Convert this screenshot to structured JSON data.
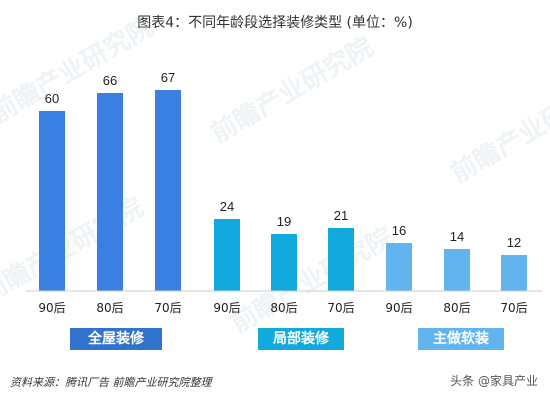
{
  "title": "图表4：不同年龄段选择装修类型 (单位：%)",
  "watermark": "前瞻产业研究院",
  "source": "资料来源：腾讯厂告 前瞻产业研究院整理",
  "credit": "头条 @家具产业",
  "colors": {
    "full": "#3a7fe2",
    "partial": "#12a9dc",
    "basic": "#62b4ee",
    "label_full": "#2f73cd",
    "label_partial": "#12a9dc",
    "label_basic": "#62b4ee"
  },
  "chart_data": {
    "type": "bar",
    "categories": [
      "90后",
      "80后",
      "70后",
      "90后",
      "80后",
      "70后",
      "90后",
      "80后",
      "70后"
    ],
    "groups": [
      {
        "name": "全屋装修",
        "categories": [
          "90后",
          "80后",
          "70后"
        ],
        "values": [
          60,
          66,
          67
        ]
      },
      {
        "name": "局部装修",
        "categories": [
          "90后",
          "80后",
          "70后"
        ],
        "values": [
          24,
          19,
          21
        ]
      },
      {
        "name": "主做软装",
        "categories": [
          "90后",
          "80后",
          "70后"
        ],
        "values": [
          16,
          14,
          12
        ]
      }
    ],
    "values": [
      60,
      66,
      67,
      24,
      19,
      21,
      16,
      14,
      12
    ],
    "unit": "%",
    "ylim": [
      0,
      75
    ],
    "grid": false,
    "legend": "none"
  }
}
